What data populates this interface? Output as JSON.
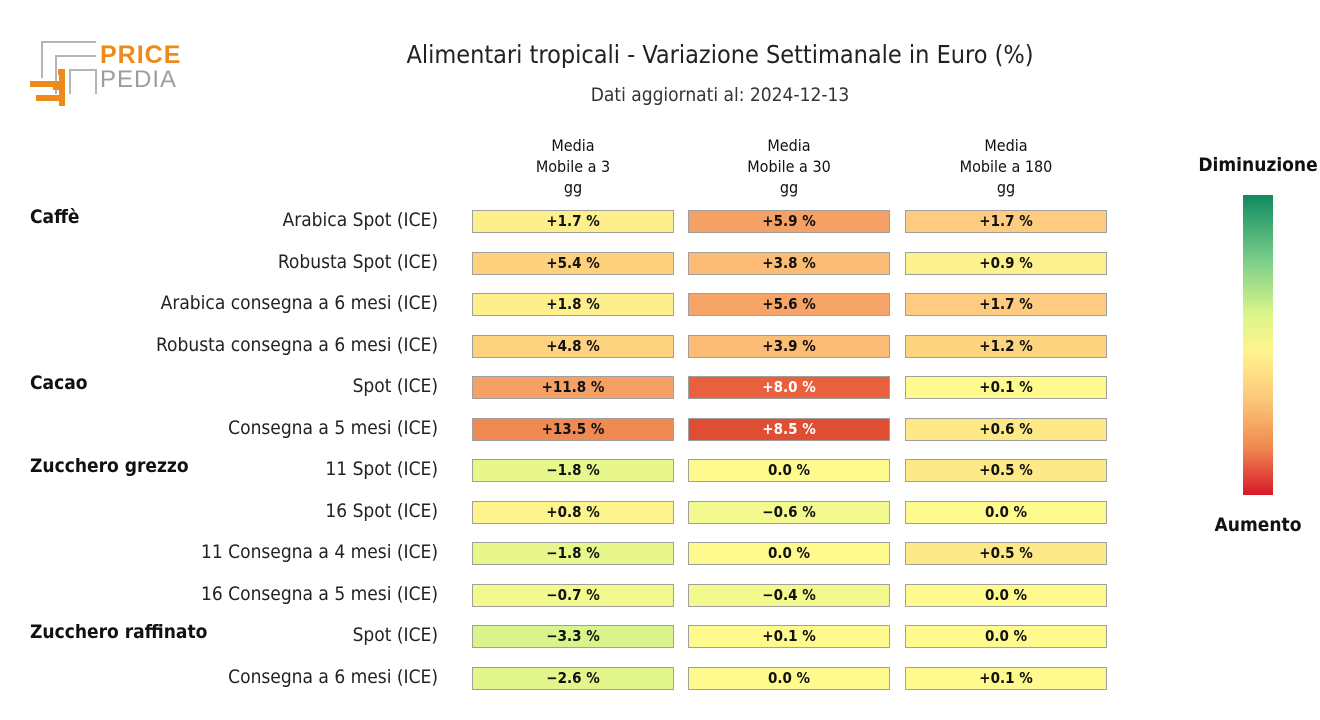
{
  "logo": {
    "line1": "PRICE",
    "line2": "PEDIA"
  },
  "chart_data": {
    "type": "heatmap",
    "title": "Alimentari tropicali - Variazione Settimanale in Euro (%)",
    "subtitle": "Dati aggiornati al: 2024-12-13",
    "columns": [
      "Media Mobile a 3 gg",
      "Media Mobile a 30 gg",
      "Media Mobile a 180 gg"
    ],
    "column_headers": [
      [
        "Media",
        "Mobile a 3",
        "gg"
      ],
      [
        "Media",
        "Mobile a 30",
        "gg"
      ],
      [
        "Media",
        "Mobile a 180",
        "gg"
      ]
    ],
    "unit": "%",
    "legend": {
      "top_label": "Diminuzione",
      "bottom_label": "Aumento"
    },
    "groups": [
      {
        "name": "Caffè",
        "rows": [
          {
            "label": "Arabica Spot (ICE)",
            "values": [
              1.7,
              5.9,
              1.7
            ],
            "texts": [
              "+1.7 %",
              "+5.9 %",
              "+1.7 %"
            ],
            "colors": [
              "#fdf08c",
              "#f5a065",
              "#fdcc80"
            ]
          },
          {
            "label": "Robusta Spot (ICE)",
            "values": [
              5.4,
              3.8,
              0.9
            ],
            "texts": [
              "+5.4 %",
              "+3.8 %",
              "+0.9 %"
            ],
            "colors": [
              "#fdd17e",
              "#fcbc76",
              "#fdf18d"
            ]
          },
          {
            "label": "Arabica consegna a 6 mesi (ICE)",
            "values": [
              1.8,
              5.6,
              1.7
            ],
            "texts": [
              "+1.8 %",
              "+5.6 %",
              "+1.7 %"
            ],
            "colors": [
              "#fdf08c",
              "#f6a468",
              "#fdcc80"
            ]
          },
          {
            "label": "Robusta consegna a 6 mesi (ICE)",
            "values": [
              4.8,
              3.9,
              1.2
            ],
            "texts": [
              "+4.8 %",
              "+3.9 %",
              "+1.2 %"
            ],
            "colors": [
              "#fdd37f",
              "#fcbc76",
              "#fdd581"
            ]
          }
        ]
      },
      {
        "name": "Cacao",
        "rows": [
          {
            "label": "Spot (ICE)",
            "values": [
              11.8,
              8.0,
              0.1
            ],
            "texts": [
              "+11.8 %",
              "+8.0 %",
              "+0.1 %"
            ],
            "colors": [
              "#f5a065",
              "#e8603d",
              "#fefa8e"
            ]
          },
          {
            "label": "Consegna a 5 mesi (ICE)",
            "values": [
              13.5,
              8.5,
              0.6
            ],
            "texts": [
              "+13.5 %",
              "+8.5 %",
              "+0.6 %"
            ],
            "colors": [
              "#ef8a52",
              "#df4e32",
              "#fde987"
            ]
          }
        ]
      },
      {
        "name": "Zucchero grezzo",
        "rows": [
          {
            "label": "11 Spot (ICE)",
            "values": [
              -1.8,
              0.0,
              0.5
            ],
            "texts": [
              "−1.8 %",
              "0.0 %",
              "+0.5 %"
            ],
            "colors": [
              "#e8f78c",
              "#fefa8e",
              "#fde987"
            ]
          },
          {
            "label": "16 Spot (ICE)",
            "values": [
              0.8,
              -0.6,
              0.0
            ],
            "texts": [
              "+0.8 %",
              "−0.6 %",
              "0.0 %"
            ],
            "colors": [
              "#fdf48d",
              "#f2f98e",
              "#fefa8e"
            ]
          },
          {
            "label": "11 Consegna a 4 mesi (ICE)",
            "values": [
              -1.8,
              0.0,
              0.5
            ],
            "texts": [
              "−1.8 %",
              "0.0 %",
              "+0.5 %"
            ],
            "colors": [
              "#e8f78c",
              "#fefa8e",
              "#fde987"
            ]
          },
          {
            "label": "16 Consegna a 5 mesi (ICE)",
            "values": [
              -0.7,
              -0.4,
              0.0
            ],
            "texts": [
              "−0.7 %",
              "−0.4 %",
              "0.0 %"
            ],
            "colors": [
              "#f3f98e",
              "#f4f98e",
              "#fefa8e"
            ]
          }
        ]
      },
      {
        "name": "Zucchero raffinato",
        "rows": [
          {
            "label": "Spot (ICE)",
            "values": [
              -3.3,
              0.1,
              0.0
            ],
            "texts": [
              "−3.3 %",
              "+0.1 %",
              "0.0 %"
            ],
            "colors": [
              "#d8f48b",
              "#fefa8e",
              "#fefa8e"
            ]
          },
          {
            "label": "Consegna a 6 mesi (ICE)",
            "values": [
              -2.6,
              0.0,
              0.1
            ],
            "texts": [
              "−2.6 %",
              "0.0 %",
              "+0.1 %"
            ],
            "colors": [
              "#e2f68c",
              "#fefa8e",
              "#fefa8e"
            ]
          }
        ]
      }
    ]
  }
}
